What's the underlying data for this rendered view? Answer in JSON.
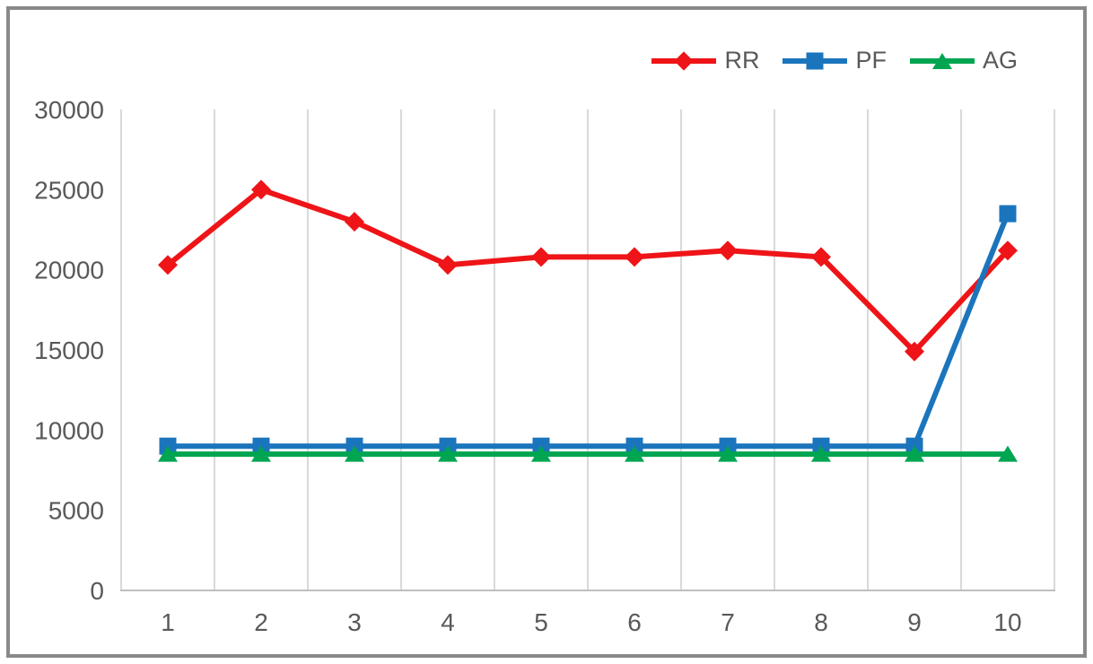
{
  "chart_data": {
    "type": "line",
    "title": "",
    "xlabel": "",
    "ylabel": "",
    "x_categories": [
      "1",
      "2",
      "3",
      "4",
      "5",
      "6",
      "7",
      "8",
      "9",
      "10"
    ],
    "yticks": [
      0,
      5000,
      10000,
      15000,
      20000,
      25000,
      30000
    ],
    "ylim": [
      0,
      30000
    ],
    "grid": "vertical-only",
    "legend_position": "top-right",
    "series": [
      {
        "name": "RR",
        "marker": "diamond",
        "color": "#ee1417",
        "values": [
          20300,
          25000,
          23000,
          20300,
          20800,
          20800,
          21200,
          20800,
          14900,
          21200
        ]
      },
      {
        "name": "PF",
        "marker": "square",
        "color": "#1b75bc",
        "values": [
          9000,
          9000,
          9000,
          9000,
          9000,
          9000,
          9000,
          9000,
          9000,
          23500
        ]
      },
      {
        "name": "AG",
        "marker": "triangle-up",
        "color": "#00a551",
        "values": [
          8500,
          8500,
          8500,
          8500,
          8500,
          8500,
          8500,
          8500,
          8500,
          8500
        ]
      }
    ]
  },
  "style_colors": {
    "gridline": "#d9d9d9",
    "axis_line": "#bfbfbf",
    "label_text": "#595959",
    "frame_border": "#898989",
    "background": "#ffffff"
  }
}
